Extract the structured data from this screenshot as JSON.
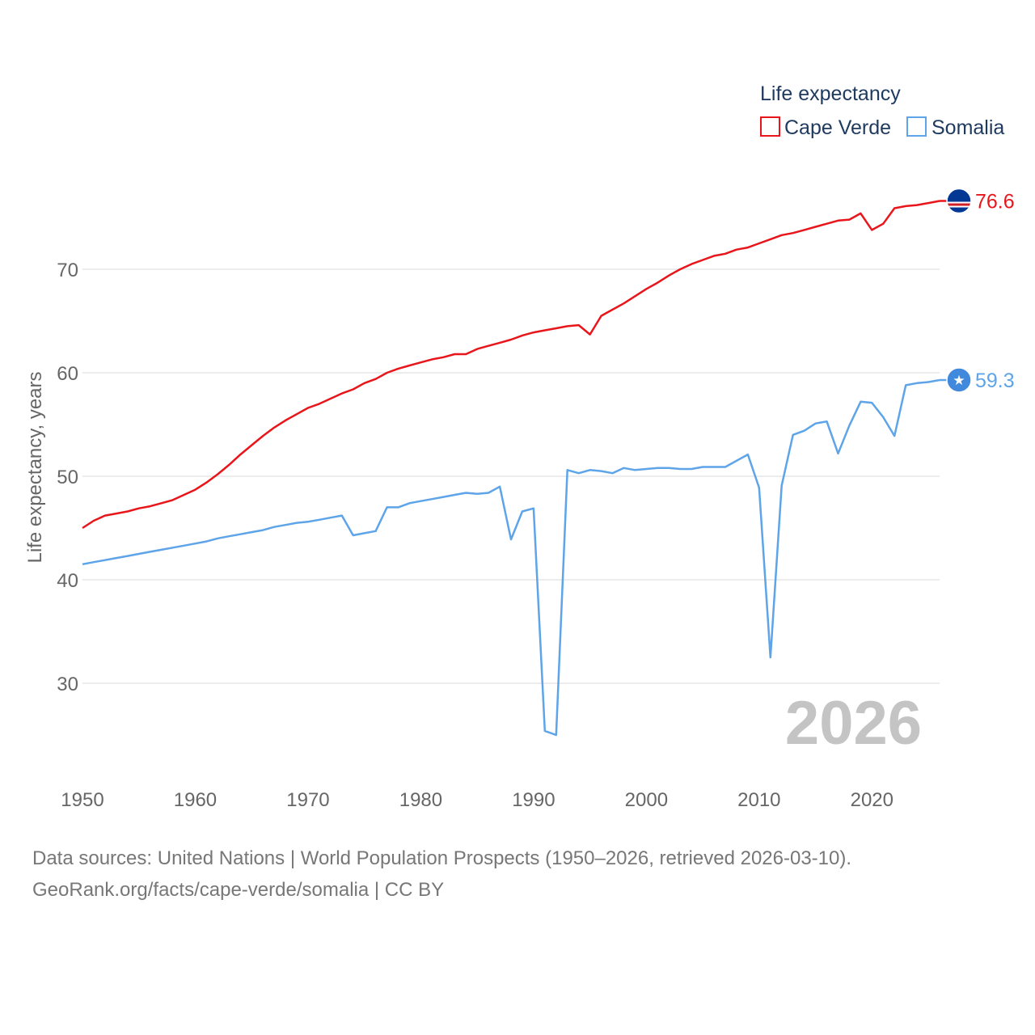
{
  "chart_data": {
    "type": "line",
    "title": "",
    "xlabel": "",
    "ylabel": "Life expectancy, years",
    "xlim": [
      1950,
      2026
    ],
    "ylim": [
      22,
      80
    ],
    "yticks": [
      30,
      40,
      50,
      60,
      70
    ],
    "xticks": [
      1950,
      1960,
      1970,
      1980,
      1990,
      2000,
      2010,
      2020
    ],
    "grid": true,
    "legend": {
      "title": "Life expectancy",
      "position": "top-right"
    },
    "year_label": "2026",
    "series": [
      {
        "name": "Cape Verde",
        "color": "#e8161b",
        "end_label": "76.6",
        "x": [
          1950,
          1951,
          1952,
          1953,
          1954,
          1955,
          1956,
          1957,
          1958,
          1959,
          1960,
          1961,
          1962,
          1963,
          1964,
          1965,
          1966,
          1967,
          1968,
          1969,
          1970,
          1971,
          1972,
          1973,
          1974,
          1975,
          1976,
          1977,
          1978,
          1979,
          1980,
          1981,
          1982,
          1983,
          1984,
          1985,
          1986,
          1987,
          1988,
          1989,
          1990,
          1991,
          1992,
          1993,
          1994,
          1995,
          1996,
          1997,
          1998,
          1999,
          2000,
          2001,
          2002,
          2003,
          2004,
          2005,
          2006,
          2007,
          2008,
          2009,
          2010,
          2011,
          2012,
          2013,
          2014,
          2015,
          2016,
          2017,
          2018,
          2019,
          2020,
          2021,
          2022,
          2023,
          2024,
          2025,
          2026
        ],
        "values": [
          45.0,
          45.7,
          46.2,
          46.4,
          46.6,
          46.9,
          47.1,
          47.4,
          47.7,
          48.2,
          48.7,
          49.4,
          50.2,
          51.1,
          52.1,
          53.0,
          53.9,
          54.7,
          55.4,
          56.0,
          56.6,
          57.0,
          57.5,
          58.0,
          58.4,
          59.0,
          59.4,
          60.0,
          60.4,
          60.7,
          61.0,
          61.3,
          61.5,
          61.8,
          61.8,
          62.3,
          62.6,
          62.9,
          63.2,
          63.6,
          63.9,
          64.1,
          64.3,
          64.5,
          64.6,
          63.7,
          65.5,
          66.1,
          66.7,
          67.4,
          68.1,
          68.7,
          69.4,
          70.0,
          70.5,
          70.9,
          71.3,
          71.5,
          71.9,
          72.1,
          72.5,
          72.9,
          73.3,
          73.5,
          73.8,
          74.1,
          74.4,
          74.7,
          74.8,
          75.4,
          73.8,
          74.4,
          75.9,
          76.1,
          76.2,
          76.4,
          76.6
        ]
      },
      {
        "name": "Somalia",
        "color": "#5ea4e8",
        "end_label": "59.3",
        "x": [
          1950,
          1951,
          1952,
          1953,
          1954,
          1955,
          1956,
          1957,
          1958,
          1959,
          1960,
          1961,
          1962,
          1963,
          1964,
          1965,
          1966,
          1967,
          1968,
          1969,
          1970,
          1971,
          1972,
          1973,
          1974,
          1975,
          1976,
          1977,
          1978,
          1979,
          1980,
          1981,
          1982,
          1983,
          1984,
          1985,
          1986,
          1987,
          1988,
          1989,
          1990,
          1991,
          1992,
          1993,
          1994,
          1995,
          1996,
          1997,
          1998,
          1999,
          2000,
          2001,
          2002,
          2003,
          2004,
          2005,
          2006,
          2007,
          2008,
          2009,
          2010,
          2011,
          2012,
          2013,
          2014,
          2015,
          2016,
          2017,
          2018,
          2019,
          2020,
          2021,
          2022,
          2023,
          2024,
          2025,
          2026
        ],
        "values": [
          41.5,
          41.7,
          41.9,
          42.1,
          42.3,
          42.5,
          42.7,
          42.9,
          43.1,
          43.3,
          43.5,
          43.7,
          44.0,
          44.2,
          44.4,
          44.6,
          44.8,
          45.1,
          45.3,
          45.5,
          45.6,
          45.8,
          46.0,
          46.2,
          44.3,
          44.5,
          44.7,
          47.0,
          47.0,
          47.4,
          47.6,
          47.8,
          48.0,
          48.2,
          48.4,
          48.3,
          48.4,
          49.0,
          43.9,
          46.6,
          46.9,
          25.4,
          25.0,
          50.6,
          50.3,
          50.6,
          50.5,
          50.3,
          50.8,
          50.6,
          50.7,
          50.8,
          50.8,
          50.7,
          50.7,
          50.9,
          50.9,
          50.9,
          51.5,
          52.1,
          48.9,
          32.5,
          49.1,
          54.0,
          54.4,
          55.1,
          55.3,
          52.2,
          54.9,
          57.2,
          57.1,
          55.7,
          53.9,
          58.8,
          59.0,
          59.1,
          59.3
        ]
      }
    ]
  },
  "footer": {
    "source_line": "Data sources: United Nations | World Population Prospects (1950–2026, retrieved 2026-03-10).",
    "credit_line": "GeoRank.org/facts/cape-verde/somalia | CC BY"
  }
}
